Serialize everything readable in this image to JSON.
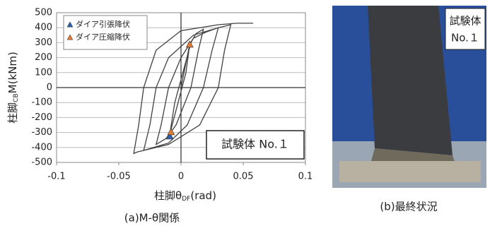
{
  "chart_data": {
    "type": "line",
    "y_label": [
      "柱脚",
      "CB",
      "M(kNm)"
    ],
    "x_label": [
      "柱脚θ",
      "DF",
      "(rad)"
    ],
    "caption": "(a)M-θ関係",
    "annotation": "試験体 No.１",
    "xlim": [
      -0.1,
      0.1
    ],
    "ylim": [
      -500,
      500
    ],
    "xticks": [
      -0.1,
      -0.05,
      0,
      0.05,
      0.1
    ],
    "yticks": [
      -500,
      -400,
      -300,
      -200,
      -100,
      0,
      100,
      200,
      300,
      400,
      500
    ],
    "grid": true,
    "legend": "upper left",
    "series": [
      {
        "mode": "lines",
        "color": "#404040",
        "x": [
          0,
          0.007,
          0.004,
          -0.009,
          -0.005,
          0.008,
          0.012,
          0.018,
          0.014,
          0.008,
          -0.004,
          -0.012,
          -0.02,
          -0.016,
          -0.01,
          0,
          0.01,
          0.02,
          0.03,
          0.025,
          0.018,
          0.005,
          -0.01,
          -0.03,
          -0.025,
          -0.02,
          -0.01,
          0.01,
          0.03,
          0.04,
          0.035,
          0.03,
          0.015,
          -0.01,
          -0.035,
          -0.038,
          -0.034,
          -0.03,
          -0.02,
          0,
          0.03,
          0.045,
          0.058
        ],
        "y": [
          0,
          290,
          100,
          -310,
          -100,
          300,
          360,
          390,
          250,
          0,
          -250,
          -340,
          -380,
          -250,
          0,
          200,
          330,
          370,
          400,
          250,
          0,
          -250,
          -370,
          -420,
          -250,
          0,
          200,
          350,
          400,
          420,
          250,
          0,
          -250,
          -380,
          -430,
          -440,
          -250,
          0,
          250,
          380,
          420,
          430,
          430
        ]
      },
      {
        "mode": "markers",
        "name": "ダイア引張降伏",
        "color": "#2e5fa8",
        "x": [
          -0.009
        ],
        "y": [
          -325
        ]
      },
      {
        "mode": "markers",
        "name": "ダイア圧縮降伏",
        "color": "#e07b39",
        "x": [
          0.007,
          -0.008
        ],
        "y": [
          288,
          -297
        ]
      }
    ]
  },
  "photo": {
    "label": [
      "試験体",
      "No.１"
    ],
    "caption": "(b)最終状況"
  }
}
